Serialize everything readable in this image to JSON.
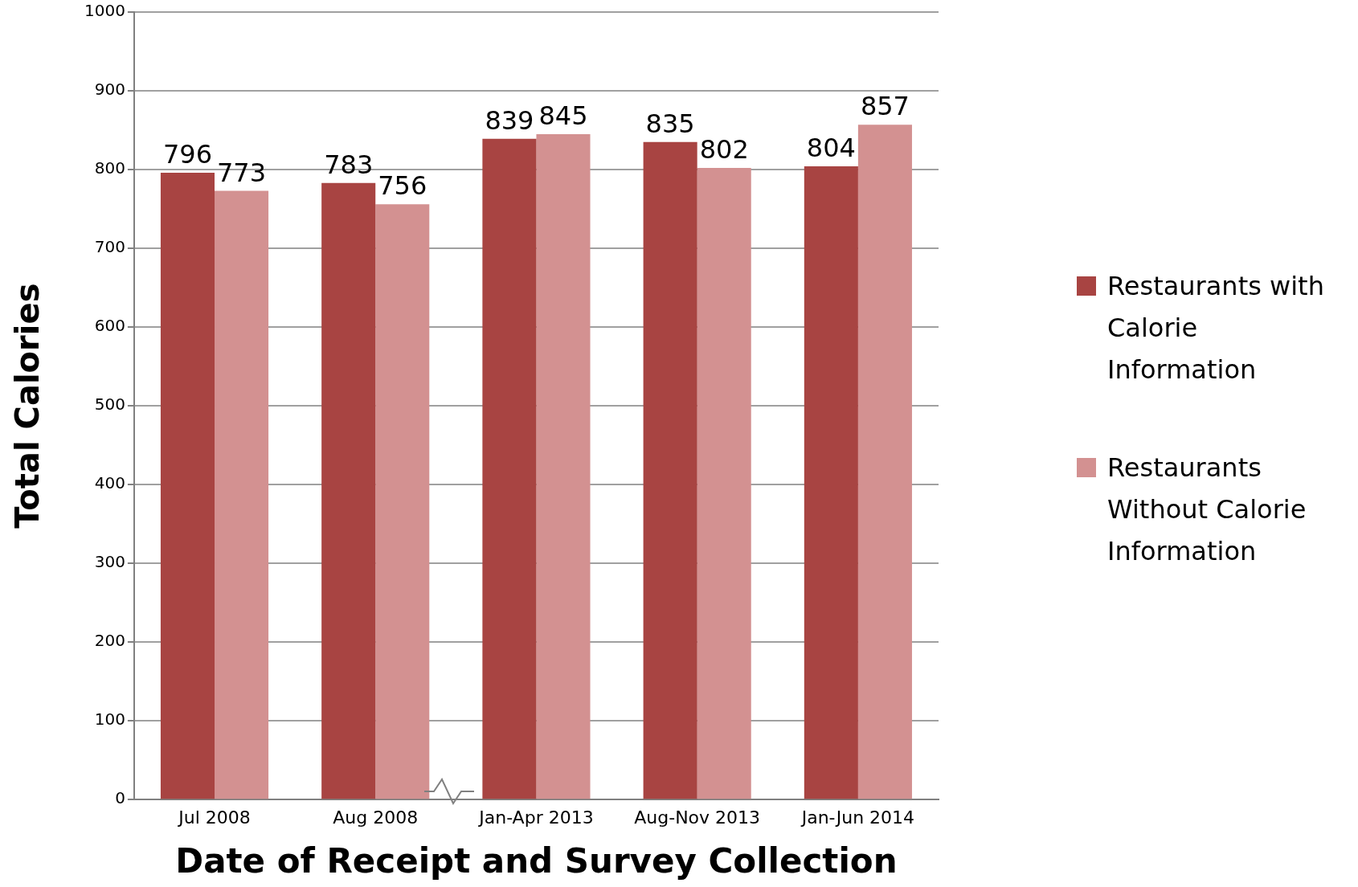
{
  "chart_data": {
    "type": "bar",
    "xlabel": "Date of Receipt and Survey Collection",
    "ylabel": "Total Calories",
    "categories": [
      "Jul 2008",
      "Aug 2008",
      "Jan-Apr 2013",
      "Aug-Nov 2013",
      "Jan-Jun 2014"
    ],
    "series": [
      {
        "name": "Restaurants with Calorie Information",
        "color": "#a84442",
        "values": [
          796,
          783,
          839,
          835,
          804
        ]
      },
      {
        "name": "Restaurants Without Calorie Information",
        "color": "#d39191",
        "values": [
          773,
          756,
          845,
          802,
          857
        ]
      }
    ],
    "ylim": [
      0,
      1000
    ],
    "yticks": [
      0,
      100,
      200,
      300,
      400,
      500,
      600,
      700,
      800,
      900,
      1000
    ],
    "grid": "y",
    "legend": "right",
    "data_labels": true
  }
}
